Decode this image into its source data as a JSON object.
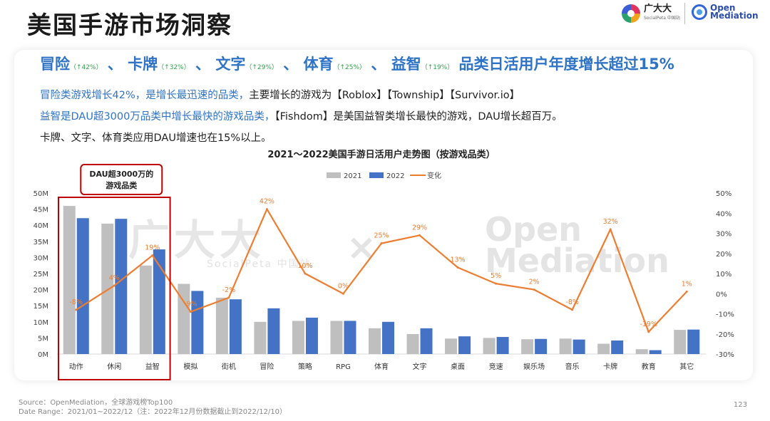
{
  "page": {
    "title": "美国手游市场洞察",
    "logo1": {
      "name": "广大大",
      "sub": "SocialPeta 中国站"
    },
    "logo2": {
      "name_line1": "Open",
      "name_line2": "Mediation"
    },
    "headline": {
      "parts": [
        {
          "label": "冒险",
          "chg": "（↑42%）"
        },
        {
          "label": "卡牌",
          "chg": "（↑32%）"
        },
        {
          "label": "文字",
          "chg": "（↑29%）"
        },
        {
          "label": "体育",
          "chg": "（↑25%）"
        },
        {
          "label": "益智",
          "chg": "（↑19%）"
        }
      ],
      "sep": "、",
      "tail": "品类日活用户年度增长超过15%"
    },
    "line1_blue": "冒险类游戏增长42%，是增长最迅速的品类，",
    "line1_rest": "主要增长的游戏为【Roblox】【Township】【Survivor.io】",
    "line2_blue": "益智是DAU超3000万品类中增长最快的游戏品类，",
    "line2_rest": "【Fishdom】是美国益智类增长最快的游戏，DAU增长超百万。",
    "line3": "卡牌、文字、体育类应用DAU增速也在15%以上。",
    "watermark": {
      "brand1": "广大大",
      "brand1_sub": "SocialPeta 中国站",
      "cross": "×",
      "brand2_l1": "Open",
      "brand2_l2": "Mediation"
    },
    "footer_line1": "Source：OpenMediation，全球游戏榜Top100",
    "footer_line2": "Date Range：2021/01~2022/12（注：2022年12月份数据截止到2022/12/10）",
    "page_number": "123"
  },
  "chart_data": {
    "type": "bar",
    "title": "2021～2022美国手游日活用户走势图（按游戏品类）",
    "categories": [
      "动作",
      "休闲",
      "益智",
      "模拟",
      "街机",
      "冒险",
      "策略",
      "RPG",
      "体育",
      "文字",
      "桌面",
      "竞速",
      "娱乐场",
      "音乐",
      "卡牌",
      "教育",
      "其它"
    ],
    "series": [
      {
        "name": "2021",
        "color": "#bfbfbf",
        "axis": "left",
        "values": [
          46,
          40.5,
          27.5,
          21.8,
          17.5,
          10,
          10.3,
          10.3,
          8,
          6.2,
          4.8,
          5,
          4.6,
          4.8,
          3.2,
          1.5,
          7.5
        ]
      },
      {
        "name": "2022",
        "color": "#4472c4",
        "axis": "left",
        "values": [
          42.2,
          42,
          32.5,
          19.6,
          17,
          14.2,
          11.3,
          10.3,
          10,
          8,
          5.5,
          5.3,
          4.7,
          4.5,
          4.2,
          1.2,
          7.6
        ]
      },
      {
        "name": "变化",
        "color": "#ed7d31",
        "axis": "right",
        "type": "line",
        "values": [
          -8,
          4,
          19,
          -9,
          -2,
          42,
          10,
          0,
          25,
          29,
          13,
          5,
          2,
          -8,
          32,
          -19,
          1
        ],
        "labels": [
          "-8%",
          "4%",
          "19%",
          "-9%",
          "-2%",
          "42%",
          "10%",
          "0%",
          "25%",
          "29%",
          "13%",
          "5%",
          "2%",
          "-8%",
          "32%",
          "-19%",
          "1%"
        ]
      }
    ],
    "yLeft": {
      "min": 0,
      "max": 50,
      "step": 5,
      "ticks": [
        "0M",
        "5M",
        "10M",
        "15M",
        "20M",
        "25M",
        "30M",
        "35M",
        "40M",
        "45M",
        "50M"
      ]
    },
    "yRight": {
      "min": -30,
      "max": 50,
      "step": 10,
      "ticks": [
        "-30%",
        "-20%",
        "-10%",
        "0%",
        "10%",
        "20%",
        "30%",
        "40%",
        "50%"
      ]
    },
    "legend": "top",
    "grid": false,
    "highlight": {
      "categories": [
        "动作",
        "休闲",
        "益智"
      ],
      "label_line1": "DAU超3000万的",
      "label_line2": "游戏品类",
      "color": "#c00000"
    }
  }
}
